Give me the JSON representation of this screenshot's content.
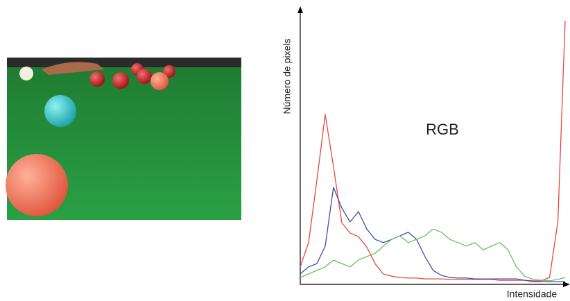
{
  "chart_data": {
    "type": "line",
    "annotation": "RGB",
    "xlabel": "Intensidade",
    "ylabel": "Número de pixels",
    "xlim": [
      0,
      255
    ],
    "ylim": [
      0,
      100
    ],
    "x": [
      0,
      8,
      16,
      24,
      32,
      40,
      48,
      56,
      64,
      72,
      80,
      88,
      96,
      104,
      112,
      120,
      128,
      136,
      144,
      152,
      160,
      168,
      176,
      184,
      192,
      200,
      208,
      216,
      224,
      232,
      240,
      248,
      255
    ],
    "series": [
      {
        "color": "#e8453c",
        "values": [
          5.9,
          14.8,
          37.7,
          61.8,
          42.7,
          22.1,
          18.3,
          17.0,
          13.2,
          7.1,
          3.3,
          2.5,
          2.0,
          1.8,
          1.8,
          1.5,
          1.5,
          1.5,
          1.3,
          1.3,
          1.3,
          1.3,
          1.3,
          1.3,
          1.0,
          1.0,
          1.0,
          1.0,
          0.8,
          0.8,
          2.0,
          22.4,
          96.2
        ]
      },
      {
        "color": "#3a4fa8",
        "values": [
          3.3,
          5.9,
          7.1,
          13.5,
          35.1,
          27.5,
          22.4,
          26.2,
          19.8,
          16.0,
          14.8,
          16.0,
          17.3,
          18.6,
          16.0,
          9.7,
          4.6,
          2.8,
          2.0,
          1.8,
          1.8,
          1.5,
          1.5,
          1.5,
          1.5,
          1.5,
          1.5,
          1.0,
          0.5,
          0.5,
          0.5,
          0.5,
          0.5
        ]
      },
      {
        "color": "#6cbf5a",
        "values": [
          2.0,
          3.3,
          4.6,
          5.9,
          8.4,
          7.1,
          5.9,
          8.4,
          9.7,
          10.9,
          13.5,
          16.0,
          17.3,
          14.8,
          16.0,
          17.3,
          19.8,
          18.6,
          16.0,
          14.8,
          13.5,
          14.8,
          12.2,
          13.5,
          14.8,
          12.2,
          5.9,
          2.5,
          1.3,
          1.0,
          0.8,
          1.3,
          2.0
        ]
      }
    ]
  }
}
